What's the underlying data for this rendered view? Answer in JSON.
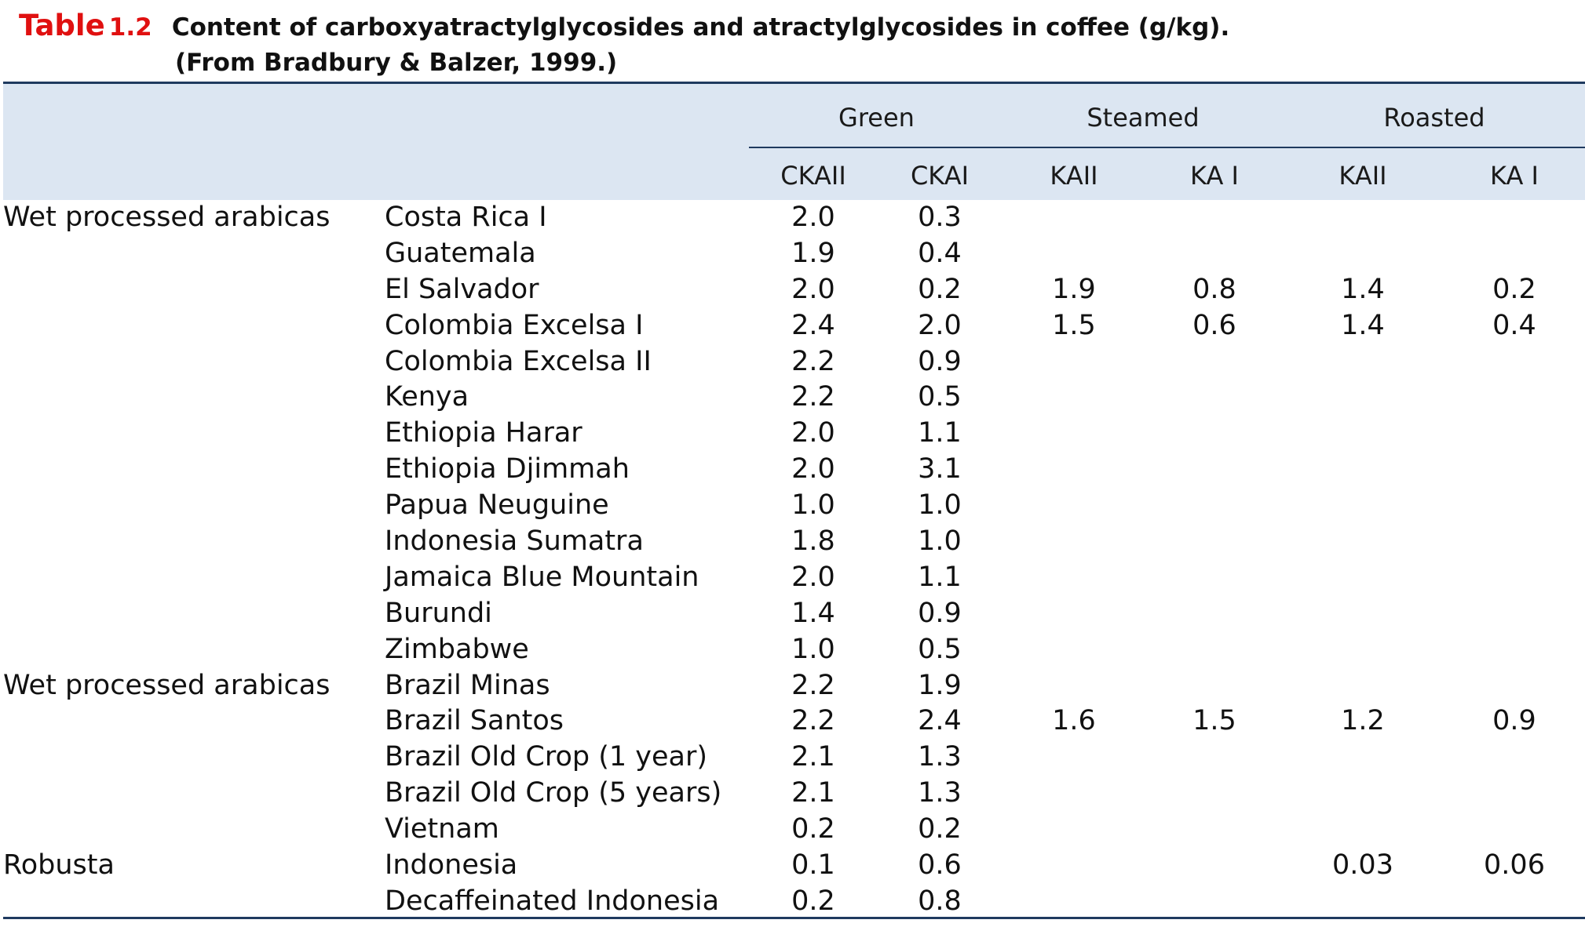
{
  "caption": {
    "label": "Table",
    "number": "1.2",
    "line1": "Content of carboxyatractylglycosides and atractylglycosides in coffee (g/kg).",
    "line2": "(From Bradbury & Balzer, 1999.)"
  },
  "header": {
    "groups": [
      "Green",
      "Steamed",
      "Roasted"
    ],
    "subcolumns": [
      "CKAII",
      "CKAI",
      "KAII",
      "KA I",
      "KAII",
      "KA I"
    ]
  },
  "rows": [
    {
      "category": "Wet processed arabicas",
      "origin": "Costa Rica I",
      "green_ckaii": "2.0",
      "green_ckai": "0.3",
      "steamed_kaii": "",
      "steamed_kai": "",
      "roasted_kaii": "",
      "roasted_kai": ""
    },
    {
      "category": "",
      "origin": "Guatemala",
      "green_ckaii": "1.9",
      "green_ckai": "0.4",
      "steamed_kaii": "",
      "steamed_kai": "",
      "roasted_kaii": "",
      "roasted_kai": ""
    },
    {
      "category": "",
      "origin": "El Salvador",
      "green_ckaii": "2.0",
      "green_ckai": "0.2",
      "steamed_kaii": "1.9",
      "steamed_kai": "0.8",
      "roasted_kaii": "1.4",
      "roasted_kai": "0.2"
    },
    {
      "category": "",
      "origin": "Colombia Excelsa I",
      "green_ckaii": "2.4",
      "green_ckai": "2.0",
      "steamed_kaii": "1.5",
      "steamed_kai": "0.6",
      "roasted_kaii": "1.4",
      "roasted_kai": "0.4"
    },
    {
      "category": "",
      "origin": "Colombia Excelsa II",
      "green_ckaii": "2.2",
      "green_ckai": "0.9",
      "steamed_kaii": "",
      "steamed_kai": "",
      "roasted_kaii": "",
      "roasted_kai": ""
    },
    {
      "category": "",
      "origin": "Kenya",
      "green_ckaii": "2.2",
      "green_ckai": "0.5",
      "steamed_kaii": "",
      "steamed_kai": "",
      "roasted_kaii": "",
      "roasted_kai": ""
    },
    {
      "category": "",
      "origin": "Ethiopia Harar",
      "green_ckaii": "2.0",
      "green_ckai": "1.1",
      "steamed_kaii": "",
      "steamed_kai": "",
      "roasted_kaii": "",
      "roasted_kai": ""
    },
    {
      "category": "",
      "origin": "Ethiopia Djimmah",
      "green_ckaii": "2.0",
      "green_ckai": "3.1",
      "steamed_kaii": "",
      "steamed_kai": "",
      "roasted_kaii": "",
      "roasted_kai": ""
    },
    {
      "category": "",
      "origin": "Papua Neuguine",
      "green_ckaii": "1.0",
      "green_ckai": "1.0",
      "steamed_kaii": "",
      "steamed_kai": "",
      "roasted_kaii": "",
      "roasted_kai": ""
    },
    {
      "category": "",
      "origin": "Indonesia Sumatra",
      "green_ckaii": "1.8",
      "green_ckai": "1.0",
      "steamed_kaii": "",
      "steamed_kai": "",
      "roasted_kaii": "",
      "roasted_kai": ""
    },
    {
      "category": "",
      "origin": "Jamaica Blue Mountain",
      "green_ckaii": "2.0",
      "green_ckai": "1.1",
      "steamed_kaii": "",
      "steamed_kai": "",
      "roasted_kaii": "",
      "roasted_kai": ""
    },
    {
      "category": "",
      "origin": "Burundi",
      "green_ckaii": "1.4",
      "green_ckai": "0.9",
      "steamed_kaii": "",
      "steamed_kai": "",
      "roasted_kaii": "",
      "roasted_kai": ""
    },
    {
      "category": "",
      "origin": "Zimbabwe",
      "green_ckaii": "1.0",
      "green_ckai": "0.5",
      "steamed_kaii": "",
      "steamed_kai": "",
      "roasted_kaii": "",
      "roasted_kai": ""
    },
    {
      "category": "Wet processed arabicas",
      "origin": "Brazil Minas",
      "green_ckaii": "2.2",
      "green_ckai": "1.9",
      "steamed_kaii": "",
      "steamed_kai": "",
      "roasted_kaii": "",
      "roasted_kai": ""
    },
    {
      "category": "",
      "origin": "Brazil Santos",
      "green_ckaii": "2.2",
      "green_ckai": "2.4",
      "steamed_kaii": "1.6",
      "steamed_kai": "1.5",
      "roasted_kaii": "1.2",
      "roasted_kai": "0.9"
    },
    {
      "category": "",
      "origin": "Brazil Old Crop (1 year)",
      "green_ckaii": "2.1",
      "green_ckai": "1.3",
      "steamed_kaii": "",
      "steamed_kai": "",
      "roasted_kaii": "",
      "roasted_kai": ""
    },
    {
      "category": "",
      "origin": "Brazil Old Crop (5 years)",
      "green_ckaii": "2.1",
      "green_ckai": "1.3",
      "steamed_kaii": "",
      "steamed_kai": "",
      "roasted_kaii": "",
      "roasted_kai": ""
    },
    {
      "category": "",
      "origin": "Vietnam",
      "green_ckaii": "0.2",
      "green_ckai": "0.2",
      "steamed_kaii": "",
      "steamed_kai": "",
      "roasted_kaii": "",
      "roasted_kai": ""
    },
    {
      "category": "Robusta",
      "origin": "Indonesia",
      "green_ckaii": "0.1",
      "green_ckai": "0.6",
      "steamed_kaii": "",
      "steamed_kai": "",
      "roasted_kaii": "0.03",
      "roasted_kai": "0.06"
    },
    {
      "category": "",
      "origin": "Decaffeinated Indonesia",
      "green_ckaii": "0.2",
      "green_ckai": "0.8",
      "steamed_kaii": "",
      "steamed_kai": "",
      "roasted_kaii": "",
      "roasted_kai": ""
    }
  ]
}
